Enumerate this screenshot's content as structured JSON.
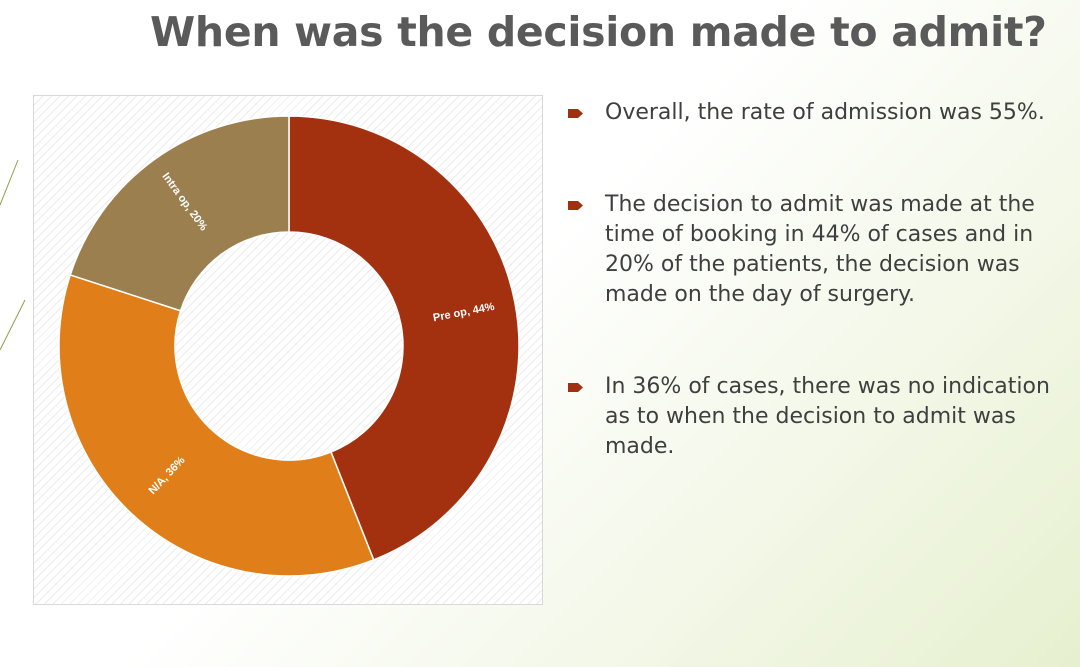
{
  "slide": {
    "title": "When was the decision made to admit?"
  },
  "bullets": [
    {
      "text": "Overall, the rate of admission was 55%."
    },
    {
      "text": "The decision to admit was made at the time of booking in 44% of cases and in 20% of the patients, the decision was made on the day of surgery."
    },
    {
      "text": "In 36% of cases, there was no indication as to when the decision to admit was made."
    }
  ],
  "colors": {
    "title": "#5a5a5a",
    "body_text": "#3f3f3f",
    "bullet_marker": "#a0300f",
    "pre_op": "#a3300f",
    "na": "#e07f1a",
    "intra_op": "#9c7f4f"
  },
  "icons": {
    "bullet": "right-arrow-bullet-icon"
  },
  "chart_data": {
    "type": "pie",
    "subtype": "donut",
    "title": "",
    "legend": "none",
    "slices": [
      {
        "label": "Pre op",
        "value": 44,
        "data_label": "Pre op, 44%",
        "color": "#a3300f"
      },
      {
        "label": "N/A",
        "value": 36,
        "data_label": "N/A, 36%",
        "color": "#e07f1a"
      },
      {
        "label": "Intra op",
        "value": 20,
        "data_label": "Intra op, 20%",
        "color": "#9c7f4f"
      }
    ]
  }
}
